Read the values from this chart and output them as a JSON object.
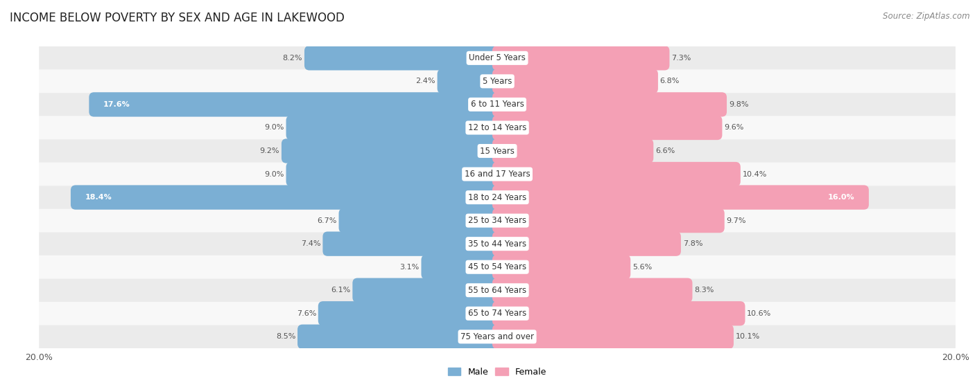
{
  "title": "INCOME BELOW POVERTY BY SEX AND AGE IN LAKEWOOD",
  "source": "Source: ZipAtlas.com",
  "categories": [
    "Under 5 Years",
    "5 Years",
    "6 to 11 Years",
    "12 to 14 Years",
    "15 Years",
    "16 and 17 Years",
    "18 to 24 Years",
    "25 to 34 Years",
    "35 to 44 Years",
    "45 to 54 Years",
    "55 to 64 Years",
    "65 to 74 Years",
    "75 Years and over"
  ],
  "male": [
    8.2,
    2.4,
    17.6,
    9.0,
    9.2,
    9.0,
    18.4,
    6.7,
    7.4,
    3.1,
    6.1,
    7.6,
    8.5
  ],
  "female": [
    7.3,
    6.8,
    9.8,
    9.6,
    6.6,
    10.4,
    16.0,
    9.7,
    7.8,
    5.6,
    8.3,
    10.6,
    10.1
  ],
  "male_color": "#7bafd4",
  "female_color": "#f4a0b5",
  "male_label": "Male",
  "female_label": "Female",
  "axis_limit": 20.0,
  "bar_height": 0.62,
  "row_bg_even": "#ebebeb",
  "row_bg_odd": "#f8f8f8",
  "title_fontsize": 12,
  "source_fontsize": 8.5,
  "category_fontsize": 8.5,
  "value_fontsize": 8.0
}
